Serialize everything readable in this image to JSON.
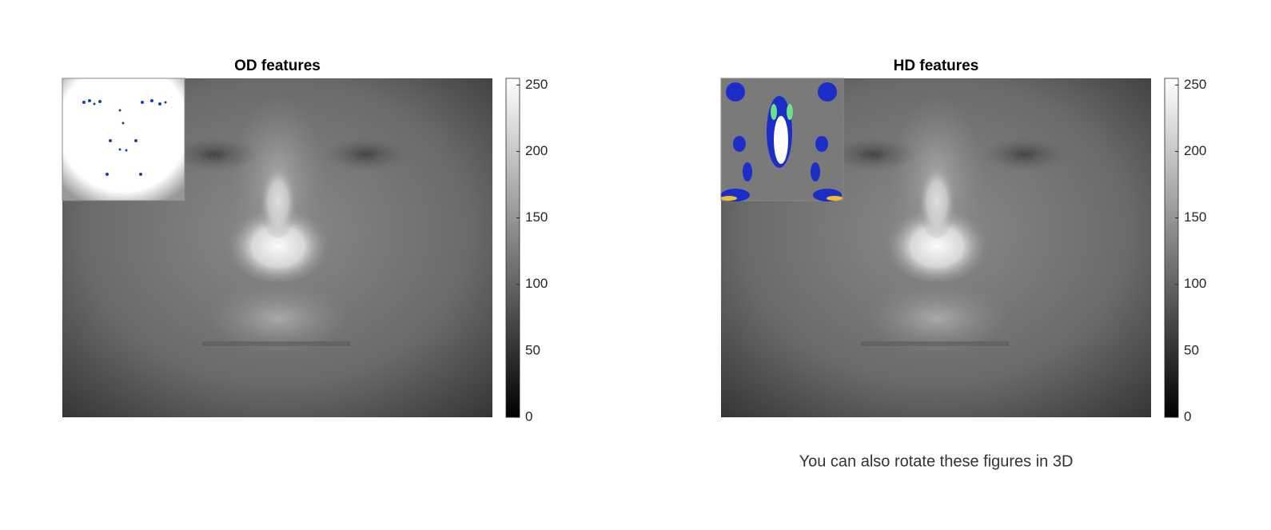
{
  "chart_data": [
    {
      "type": "image",
      "title": "OD features",
      "colormap": "gray",
      "clim": [
        0,
        255
      ],
      "cticks": [
        0,
        50,
        100,
        150,
        200,
        250
      ]
    },
    {
      "type": "image",
      "title": "HD features",
      "colormap": "gray",
      "clim": [
        0,
        255
      ],
      "cticks": [
        0,
        50,
        100,
        150,
        200,
        250
      ],
      "annotation": "You can also rotate these figures in 3D"
    }
  ]
}
